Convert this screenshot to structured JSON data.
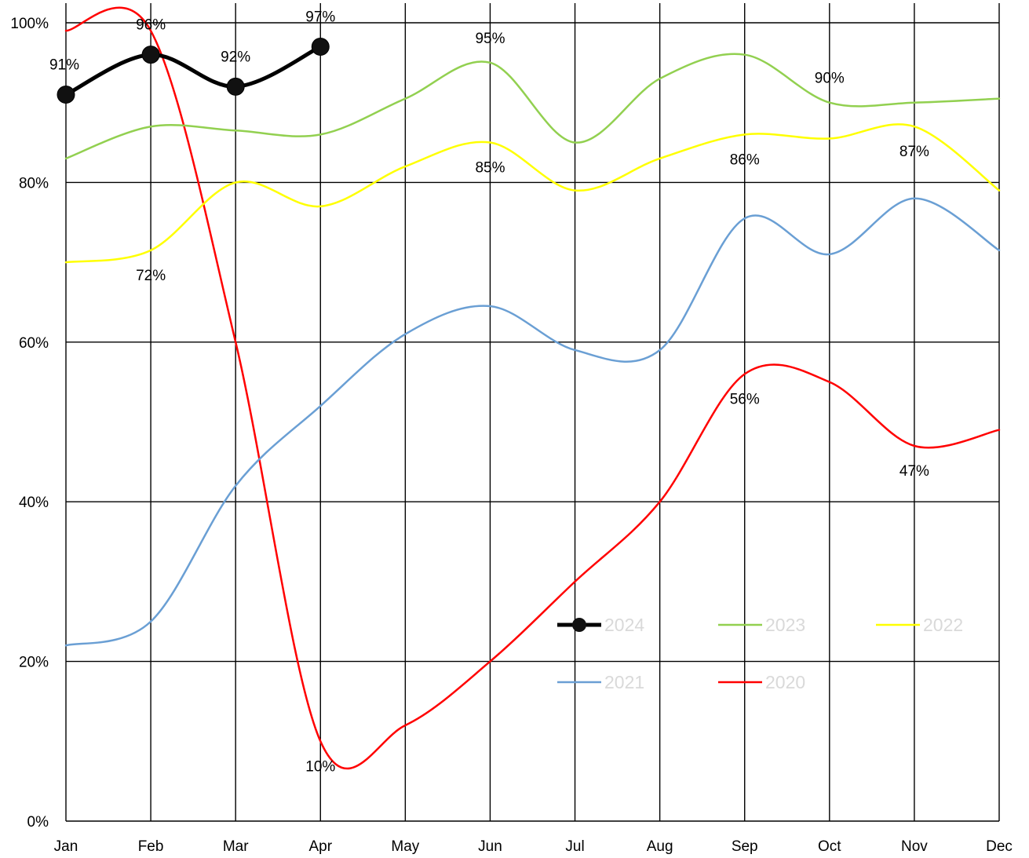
{
  "chart_data": {
    "type": "line",
    "title": "",
    "xlabel": "",
    "ylabel": "",
    "categories": [
      "Jan",
      "Feb",
      "Mar",
      "Apr",
      "May",
      "Jun",
      "Jul",
      "Aug",
      "Sep",
      "Oct",
      "Nov",
      "Dec"
    ],
    "ylim": [
      0,
      1
    ],
    "yticks": [
      "0%",
      "20%",
      "40%",
      "60%",
      "80%",
      "100%"
    ],
    "grid": true,
    "legend_position": "bottom-right inside",
    "series": [
      {
        "name": "2024",
        "color": "#000000",
        "markers": true,
        "values": [
          0.91,
          0.96,
          0.92,
          0.97,
          null,
          null,
          null,
          null,
          null,
          null,
          null,
          null
        ],
        "labels": [
          "91%",
          "96%",
          "92%",
          "97%",
          "",
          "",
          "",
          "",
          "",
          "",
          "",
          ""
        ]
      },
      {
        "name": "2023",
        "color": "#92d050",
        "values": [
          0.83,
          0.87,
          0.865,
          0.86,
          0.905,
          0.95,
          0.85,
          0.93,
          0.96,
          0.9,
          0.9,
          0.905
        ],
        "labels": [
          "",
          "",
          "",
          "",
          "",
          "95%",
          "",
          "",
          "",
          "90%",
          "",
          ""
        ]
      },
      {
        "name": "2022",
        "color": "#ffff00",
        "values": [
          0.7,
          0.715,
          0.8,
          0.77,
          0.82,
          0.85,
          0.79,
          0.83,
          0.86,
          0.855,
          0.87,
          0.79
        ],
        "labels": [
          "",
          "72%",
          "",
          "",
          "",
          "85%",
          "",
          "",
          "86%",
          "",
          "87%",
          ""
        ]
      },
      {
        "name": "2021",
        "color": "#6a9fd4",
        "values": [
          0.22,
          0.25,
          0.42,
          0.52,
          0.61,
          0.645,
          0.59,
          0.59,
          0.755,
          0.71,
          0.78,
          0.715
        ],
        "labels": [
          "",
          "",
          "",
          "",
          "",
          "",
          "",
          "",
          "",
          "",
          "",
          ""
        ]
      },
      {
        "name": "2020",
        "color": "#ff0000",
        "values": [
          0.99,
          0.99,
          0.6,
          0.1,
          0.12,
          0.2,
          0.3,
          0.4,
          0.56,
          0.55,
          0.47,
          0.49
        ],
        "labels": [
          "",
          "",
          "",
          "10%",
          "",
          "",
          "",
          "",
          "56%",
          "",
          "47%",
          ""
        ]
      }
    ]
  }
}
